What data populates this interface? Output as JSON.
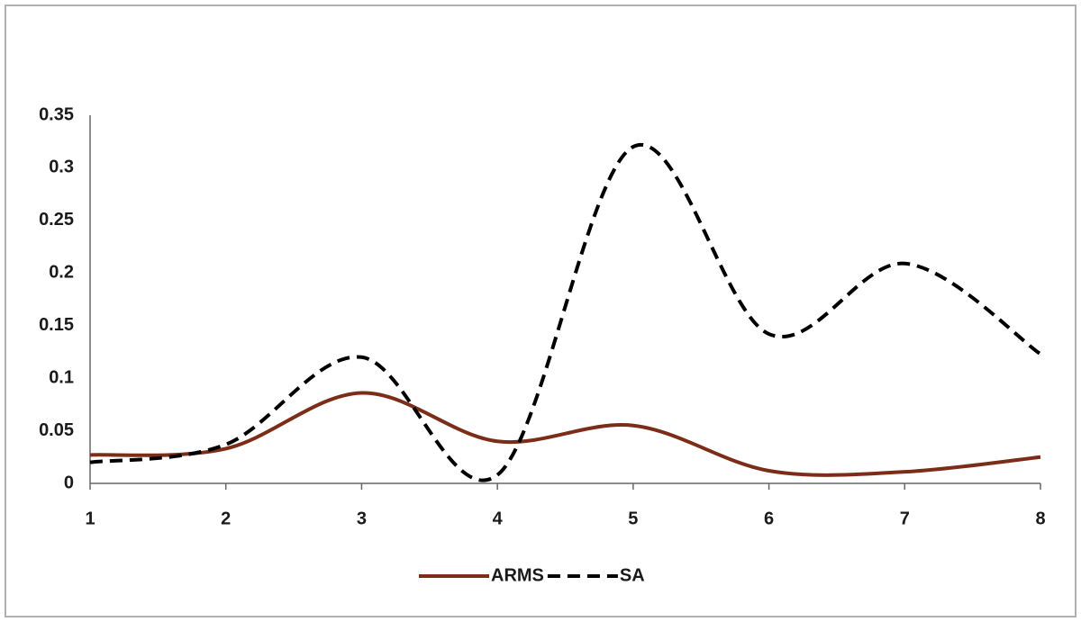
{
  "chart_data": {
    "type": "line",
    "smooth": true,
    "x": [
      1,
      2,
      3,
      4,
      5,
      6,
      7,
      8
    ],
    "xlim": [
      1,
      8
    ],
    "xticks": [
      1,
      2,
      3,
      4,
      5,
      6,
      7,
      8
    ],
    "ylim": [
      0,
      0.35
    ],
    "yticks": [
      0,
      0.05,
      0.1,
      0.15,
      0.2,
      0.25,
      0.3,
      0.35
    ],
    "grid": false,
    "legend": "bottom",
    "series": [
      {
        "name": "ARMS",
        "color": "#7b2d18",
        "dash": "solid",
        "values": [
          0.027,
          0.033,
          0.086,
          0.04,
          0.055,
          0.012,
          0.011,
          0.025
        ]
      },
      {
        "name": "SA",
        "color": "#000000",
        "dash": "dashed",
        "values": [
          0.02,
          0.037,
          0.12,
          0.008,
          0.32,
          0.142,
          0.209,
          0.123
        ]
      }
    ]
  }
}
